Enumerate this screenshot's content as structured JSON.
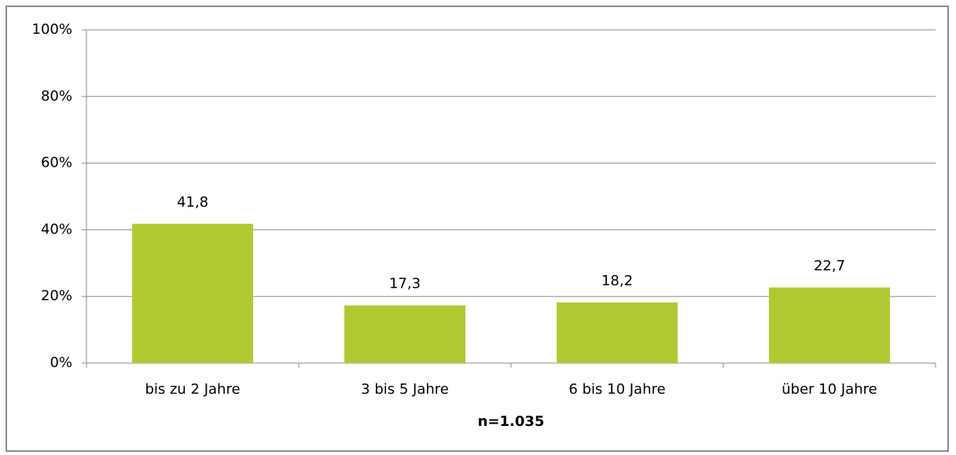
{
  "chart_data": {
    "type": "bar",
    "categories": [
      "bis zu 2 Jahre",
      "3 bis 5 Jahre",
      "6 bis 10 Jahre",
      "über 10 Jahre"
    ],
    "values": [
      41.8,
      17.3,
      18.2,
      22.7
    ],
    "value_labels": [
      "41,8",
      "17,3",
      "18,2",
      "22,7"
    ],
    "color": "#b2c833",
    "x_label": "n=1.035",
    "ylim": [
      0,
      100
    ],
    "yticks": [
      {
        "value": 0,
        "label": "0%"
      },
      {
        "value": 20,
        "label": "20%"
      },
      {
        "value": 40,
        "label": "40%"
      },
      {
        "value": 60,
        "label": "60%"
      },
      {
        "value": 80,
        "label": "80%"
      },
      {
        "value": 100,
        "label": "100%"
      }
    ],
    "grid": true
  }
}
